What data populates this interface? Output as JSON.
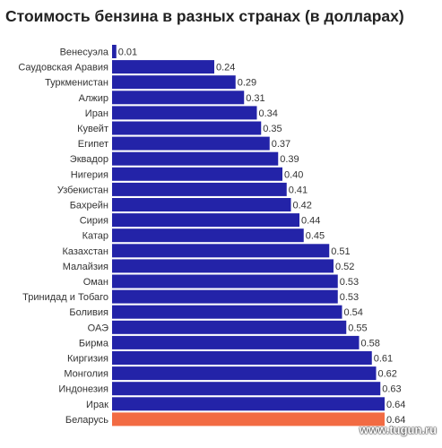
{
  "chart_data": {
    "type": "bar",
    "orientation": "horizontal",
    "title": "Стоимость бензина в разных странах (в долларах)",
    "categories": [
      "Венесуэла",
      "Саудовская Аравия",
      "Туркменистан",
      "Алжир",
      "Иран",
      "Кувейт",
      "Египет",
      "Эквадор",
      "Нигерия",
      "Узбекистан",
      "Бахрейн",
      "Сирия",
      "Катар",
      "Казахстан",
      "Малайзия",
      "Оман",
      "Тринидад и Тобаго",
      "Боливия",
      "ОАЭ",
      "Бирма",
      "Киргизия",
      "Монголия",
      "Индонезия",
      "Ирак",
      "Беларусь"
    ],
    "values": [
      0.01,
      0.24,
      0.29,
      0.31,
      0.34,
      0.35,
      0.37,
      0.39,
      0.4,
      0.41,
      0.42,
      0.44,
      0.45,
      0.51,
      0.52,
      0.53,
      0.53,
      0.54,
      0.55,
      0.58,
      0.61,
      0.62,
      0.63,
      0.64,
      0.64
    ],
    "value_labels": [
      "0.01",
      "0.24",
      "0.29",
      "0.31",
      "0.34",
      "0.35",
      "0.37",
      "0.39",
      "0.40",
      "0.41",
      "0.42",
      "0.44",
      "0.45",
      "0.51",
      "0.52",
      "0.53",
      "0.53",
      "0.54",
      "0.55",
      "0.58",
      "0.61",
      "0.62",
      "0.63",
      "0.64",
      "0.64"
    ],
    "highlight_category": "Беларусь",
    "bar_color": "#2323a8",
    "highlight_color": "#f26b43",
    "grid": false,
    "legend": "none"
  },
  "watermark": "www.tugun.ru"
}
